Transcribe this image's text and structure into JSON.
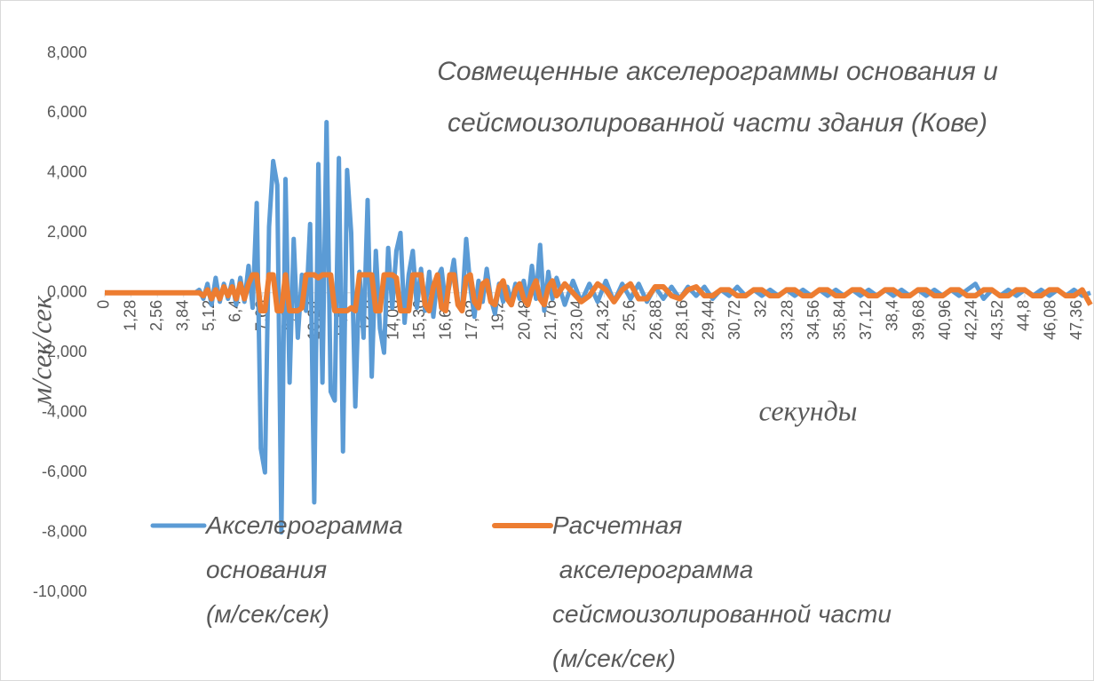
{
  "chart_data": {
    "type": "line",
    "title": [
      "Совмещенные акселерограммы основания и",
      "сейсмоизолированной части здания (Кове)"
    ],
    "y_label": "м/сек/сек",
    "x_label": "секунды",
    "legend": "bottom-left",
    "grid": false,
    "xlim": [
      0,
      48
    ],
    "ylim": [
      -10,
      8
    ],
    "yticks": [
      {
        "value": 8,
        "label": "8,000"
      },
      {
        "value": 6,
        "label": "6,000"
      },
      {
        "value": 4,
        "label": "4,000"
      },
      {
        "value": 2,
        "label": "2,000"
      },
      {
        "value": 0,
        "label": "0,000"
      },
      {
        "value": -2,
        "label": "-2,000"
      },
      {
        "value": -4,
        "label": "-4,000"
      },
      {
        "value": -6,
        "label": "-6,000"
      },
      {
        "value": -8,
        "label": "-8,000"
      },
      {
        "value": -10,
        "label": "-10,000"
      }
    ],
    "xticks": [
      0,
      {
        "value": 1.28,
        "label": "1,28"
      },
      {
        "value": 2.56,
        "label": "2,56"
      },
      {
        "value": 3.84,
        "label": "3,84"
      },
      {
        "value": 5.12,
        "label": "5,12"
      },
      {
        "value": 6.4,
        "label": "6,4"
      },
      {
        "value": 7.68,
        "label": "7,68"
      },
      {
        "value": 8.96,
        "label": "8,96"
      },
      {
        "value": 10.24,
        "label": "10,24"
      },
      {
        "value": 11.52,
        "label": "11,52"
      },
      {
        "value": 12.8,
        "label": "12,8"
      },
      {
        "value": 14.08,
        "label": "14,08"
      },
      {
        "value": 15.36,
        "label": "15,36"
      },
      {
        "value": 16.64,
        "label": "16,64"
      },
      {
        "value": 17.92,
        "label": "17,92"
      },
      {
        "value": 19.2,
        "label": "19,2"
      },
      {
        "value": 20.48,
        "label": "20,48"
      },
      {
        "value": 21.76,
        "label": "21,76"
      },
      {
        "value": 23.04,
        "label": "23,04"
      },
      {
        "value": 24.32,
        "label": "24,32"
      },
      {
        "value": 25.6,
        "label": "25,6"
      },
      {
        "value": 26.88,
        "label": "26,88"
      },
      {
        "value": 28.16,
        "label": "28,16"
      },
      {
        "value": 29.44,
        "label": "29,44"
      },
      {
        "value": 30.72,
        "label": "30,72"
      },
      32,
      {
        "value": 33.28,
        "label": "33,28"
      },
      {
        "value": 34.56,
        "label": "34,56"
      },
      {
        "value": 35.84,
        "label": "35,84"
      },
      {
        "value": 37.12,
        "label": "37,12"
      },
      {
        "value": 38.4,
        "label": "38,4"
      },
      {
        "value": 39.68,
        "label": "39,68"
      },
      {
        "value": 40.96,
        "label": "40,96"
      },
      {
        "value": 42.24,
        "label": "42,24"
      },
      {
        "value": 43.52,
        "label": "43,52"
      },
      {
        "value": 44.8,
        "label": "44,8"
      },
      {
        "value": 46.08,
        "label": "46,08"
      },
      {
        "value": 47.36,
        "label": "47,36"
      }
    ],
    "x": [
      0,
      1,
      2,
      3,
      4,
      4.4,
      4.6,
      4.8,
      5,
      5.2,
      5.4,
      5.6,
      5.8,
      6,
      6.2,
      6.4,
      6.6,
      6.8,
      7,
      7.2,
      7.4,
      7.6,
      7.8,
      8,
      8.2,
      8.4,
      8.6,
      8.8,
      9,
      9.2,
      9.4,
      9.6,
      9.8,
      10,
      10.2,
      10.4,
      10.6,
      10.8,
      11,
      11.2,
      11.4,
      11.6,
      11.8,
      12,
      12.2,
      12.4,
      12.6,
      12.8,
      13,
      13.2,
      13.4,
      13.6,
      13.8,
      14,
      14.2,
      14.4,
      14.6,
      14.8,
      15,
      15.2,
      15.4,
      15.6,
      15.8,
      16,
      16.2,
      16.4,
      16.6,
      16.8,
      17,
      17.2,
      17.4,
      17.6,
      17.8,
      18,
      18.2,
      18.4,
      18.6,
      18.8,
      19,
      19.2,
      19.4,
      19.6,
      19.8,
      20,
      20.2,
      20.4,
      20.6,
      20.8,
      21,
      21.2,
      21.4,
      21.6,
      21.8,
      22,
      22.4,
      22.8,
      23.2,
      23.6,
      24,
      24.4,
      24.8,
      25.2,
      25.6,
      26,
      26.4,
      26.8,
      27.2,
      27.6,
      28,
      28.4,
      28.8,
      29.2,
      29.6,
      30,
      30.4,
      30.8,
      31.2,
      31.6,
      32,
      32.4,
      32.8,
      33.2,
      33.6,
      34,
      34.4,
      34.8,
      35.2,
      35.6,
      36,
      36.4,
      36.8,
      37.2,
      37.6,
      38,
      38.4,
      38.8,
      39.2,
      39.6,
      40,
      40.4,
      40.8,
      41.2,
      41.6,
      42,
      42.4,
      42.8,
      43.2,
      43.6,
      44,
      44.4,
      44.8,
      45.2,
      45.6,
      46,
      46.4,
      46.8,
      47.2,
      47.6,
      48
    ],
    "series": [
      {
        "name": "Акселерограмма\nоснования\n(м/сек/сек)",
        "color": "#5b9bd5",
        "values": [
          0,
          0,
          0,
          0,
          0,
          0,
          0.1,
          -0.2,
          0.3,
          -0.4,
          0.5,
          -0.3,
          0.3,
          -0.2,
          0.4,
          -0.4,
          0.5,
          -0.3,
          0.9,
          -0.5,
          3.0,
          -5.2,
          -6.0,
          2.2,
          4.4,
          3.6,
          -8.0,
          3.8,
          -3.0,
          1.8,
          -1.5,
          0.6,
          -0.6,
          2.3,
          -7.0,
          4.3,
          -3.0,
          5.7,
          -3.3,
          -3.6,
          4.5,
          -5.3,
          4.1,
          2.0,
          -3.8,
          0.7,
          -1.5,
          3.1,
          -2.8,
          1.4,
          -1.2,
          -2.0,
          1.5,
          -0.5,
          1.4,
          2.0,
          -1.0,
          0.6,
          1.4,
          -0.5,
          0.8,
          -0.6,
          0.7,
          -0.8,
          0.5,
          0.8,
          -0.4,
          0.3,
          1.1,
          -0.3,
          -0.5,
          1.8,
          0.2,
          -0.8,
          0.4,
          -0.3,
          0.8,
          -0.2,
          -0.7,
          0.3,
          -0.3,
          0.2,
          -0.3,
          0.3,
          -0.2,
          0.4,
          -0.3,
          0.9,
          -0.2,
          1.6,
          -0.6,
          0.7,
          -0.2,
          0.5,
          -0.4,
          0.4,
          -0.3,
          0.3,
          -0.3,
          0.4,
          -0.3,
          0.3,
          -0.2,
          0.3,
          -0.3,
          0.2,
          -0.2,
          0.2,
          -0.2,
          0.2,
          -0.1,
          0.2,
          -0.2,
          0.1,
          -0.1,
          0.2,
          -0.1,
          0.1,
          -0.1,
          0.1,
          -0.1,
          0.1,
          -0.1,
          0.1,
          -0.1,
          0.1,
          -0.1,
          0.1,
          -0.1,
          0.1,
          -0.1,
          0.1,
          -0.1,
          0.1,
          -0.1,
          0.1,
          -0.1,
          0.1,
          -0.1,
          0.1,
          -0.1,
          0.1,
          -0.1,
          0.1,
          0.3,
          -0.2,
          0.1,
          -0.1,
          0.1,
          -0.1,
          0.1,
          -0.1,
          0.1,
          -0.1,
          0.1,
          -0.1,
          0.1,
          -0.1,
          0
        ]
      },
      {
        "name": "Расчетная\n акселерограмма\nсейсмоизолированной части\n(м/сек/сек)",
        "color": "#ed7d31",
        "values": [
          0,
          0,
          0,
          0,
          0,
          0,
          0,
          -0.1,
          0.1,
          -0.2,
          0.1,
          -0.2,
          0.2,
          -0.1,
          0.2,
          -0.2,
          0.3,
          -0.2,
          0.3,
          0.6,
          0.6,
          -0.6,
          -0.6,
          0.6,
          0.6,
          -0.6,
          -0.6,
          0.6,
          -0.6,
          -0.6,
          -0.6,
          -0.5,
          0.6,
          0.6,
          0.6,
          0.5,
          0.6,
          0.6,
          0.6,
          -0.6,
          -0.6,
          -0.6,
          -0.6,
          -0.5,
          -0.6,
          0.6,
          0.6,
          0.6,
          0.6,
          -0.6,
          -0.6,
          0.6,
          0.6,
          0.6,
          0.5,
          -0.6,
          -0.6,
          -0.6,
          0.6,
          0.6,
          0.6,
          -0.4,
          -0.6,
          0.2,
          0.6,
          -0.5,
          -0.6,
          0.6,
          0.6,
          -0.4,
          -0.6,
          0.5,
          0.6,
          -0.3,
          -0.5,
          0.3,
          0.4,
          -0.3,
          -0.4,
          0.2,
          0.4,
          -0.2,
          -0.4,
          0.1,
          0.3,
          -0.2,
          -0.4,
          0.1,
          0.4,
          -0.2,
          -0.4,
          0.2,
          0.4,
          -0.1,
          0.3,
          0.0,
          -0.3,
          -0.1,
          0.3,
          0.1,
          -0.3,
          0.1,
          0.3,
          -0.2,
          -0.2,
          0.2,
          0.2,
          -0.1,
          -0.2,
          0.1,
          0.2,
          -0.1,
          -0.1,
          0.1,
          0.1,
          -0.1,
          -0.1,
          0.1,
          0.1,
          -0.1,
          -0.1,
          0.1,
          0.1,
          -0.1,
          -0.1,
          0.1,
          0.1,
          -0.1,
          -0.1,
          0.1,
          0.1,
          -0.1,
          -0.1,
          0.1,
          0.1,
          -0.1,
          -0.1,
          0.1,
          0.1,
          -0.1,
          -0.1,
          0.1,
          0.1,
          -0.1,
          -0.1,
          0.1,
          0.1,
          -0.1,
          -0.1,
          0.1,
          0.1,
          -0.1,
          -0.1,
          0.1,
          0.1,
          -0.1,
          -0.1,
          0.1,
          -0.4
        ]
      }
    ]
  }
}
